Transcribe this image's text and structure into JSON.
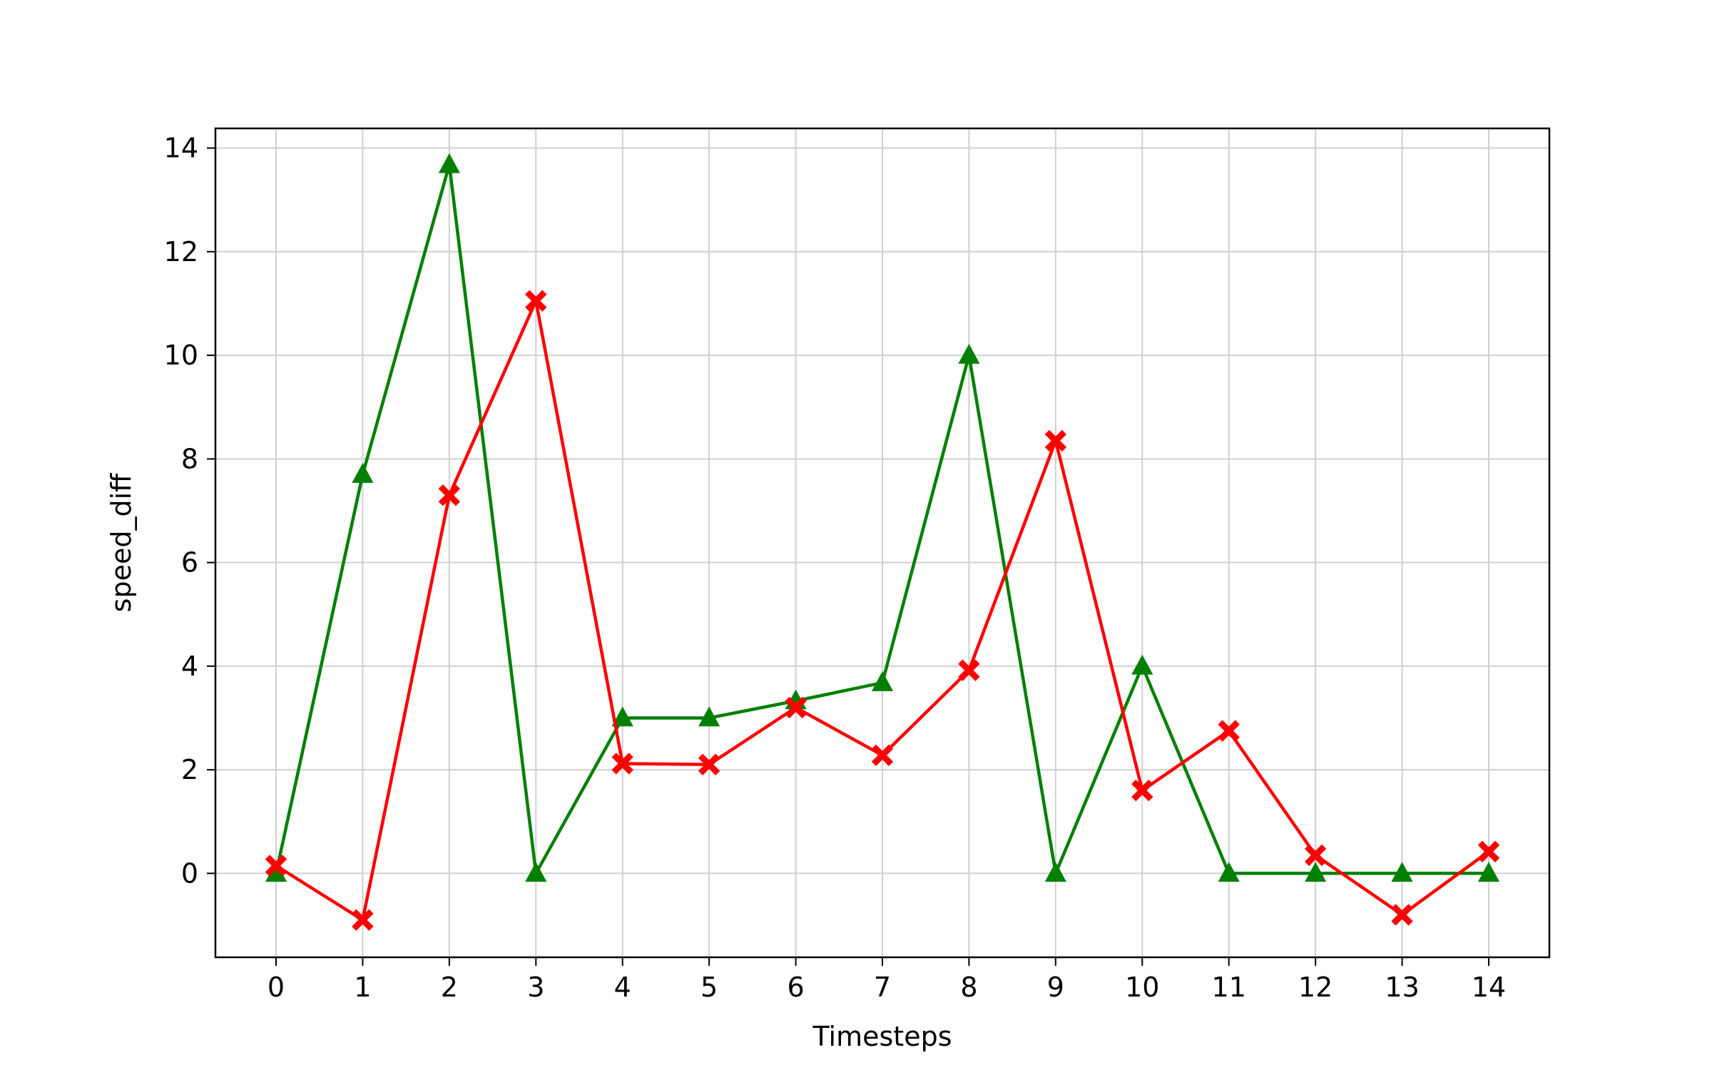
{
  "chart_data": {
    "type": "line",
    "title": "",
    "xlabel": "Timesteps",
    "ylabel": "speed_diff",
    "x": [
      0,
      1,
      2,
      3,
      4,
      5,
      6,
      7,
      8,
      9,
      10,
      11,
      12,
      13,
      14
    ],
    "xticks": [
      "0",
      "1",
      "2",
      "3",
      "4",
      "5",
      "6",
      "7",
      "8",
      "9",
      "10",
      "11",
      "12",
      "13",
      "14"
    ],
    "yticks": [
      0,
      2,
      4,
      6,
      8,
      10,
      12,
      14
    ],
    "ytick_labels": [
      "0",
      "2",
      "4",
      "6",
      "8",
      "10",
      "12",
      "14"
    ],
    "xlim": [
      -0.7,
      14.7
    ],
    "ylim": [
      -1.62,
      14.38
    ],
    "grid": true,
    "legend": "none",
    "series": [
      {
        "color": "#008000",
        "marker": "triangle",
        "values": [
          0.0,
          7.7,
          13.68,
          0.0,
          3.0,
          3.0,
          3.33,
          3.68,
          10.0,
          0.0,
          4.0,
          0.0,
          0.0,
          0.0,
          0.0
        ]
      },
      {
        "color": "#ff0000",
        "marker": "x-filled",
        "values": [
          0.15,
          -0.9,
          7.3,
          11.05,
          2.12,
          2.1,
          3.2,
          2.28,
          3.92,
          8.35,
          1.6,
          2.75,
          0.35,
          -0.8,
          0.42
        ]
      }
    ]
  }
}
